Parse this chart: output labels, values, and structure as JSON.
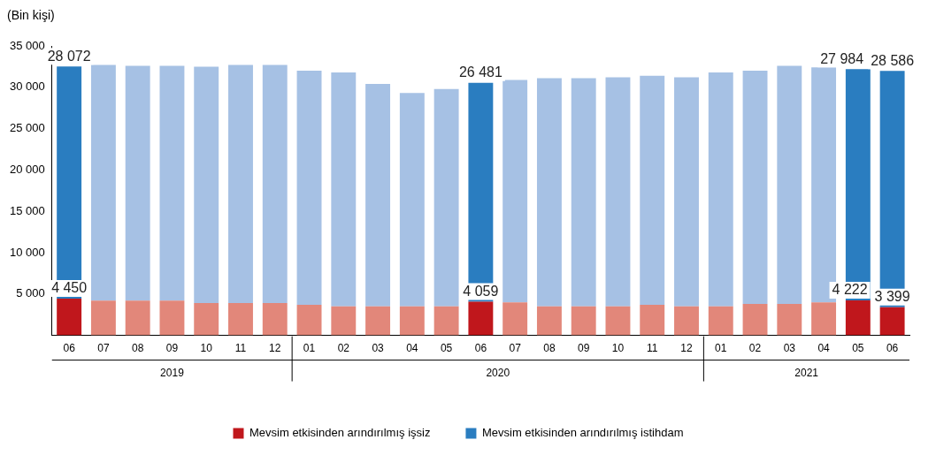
{
  "chart_data": {
    "type": "bar",
    "stacked": true,
    "ylabel": "(Bin kişi)",
    "categories": [
      "06",
      "07",
      "08",
      "09",
      "10",
      "11",
      "12",
      "01",
      "02",
      "03",
      "04",
      "05",
      "06",
      "07",
      "08",
      "09",
      "10",
      "11",
      "12",
      "01",
      "02",
      "03",
      "04",
      "05",
      "06"
    ],
    "annotations": [
      "2019",
      "2020",
      "2021"
    ],
    "series": [
      {
        "name": "Mevsim etkisinden arındırılmış işsiz",
        "color": "#c0171c",
        "colors": [
          "#c0171c",
          "#e2877a",
          "#e2877a",
          "#e2877a",
          "#e2877a",
          "#e2877a",
          "#e2877a",
          "#e2877a",
          "#e2877a",
          "#e2877a",
          "#e2877a",
          "#e2877a",
          "#c0171c",
          "#e2877a",
          "#e2877a",
          "#e2877a",
          "#e2877a",
          "#e2877a",
          "#e2877a",
          "#e2877a",
          "#e2877a",
          "#e2877a",
          "#e2877a",
          "#c0171c",
          "#c0171c"
        ],
        "values": [
          4450,
          4200,
          4200,
          4200,
          3900,
          3900,
          3900,
          3700,
          3500,
          3500,
          3500,
          3500,
          4059,
          4000,
          3500,
          3500,
          3500,
          3700,
          3500,
          3500,
          3800,
          3800,
          4000,
          4222,
          3399
        ],
        "value_labels": [
          "4 450",
          null,
          null,
          null,
          null,
          null,
          null,
          null,
          null,
          null,
          null,
          null,
          "4 059",
          null,
          null,
          null,
          null,
          null,
          null,
          null,
          null,
          null,
          null,
          "4 222",
          "3 399"
        ]
      },
      {
        "name": "Mevsim etkisinden arındırılmış istihdam",
        "color": "#2a7dc0",
        "colors": [
          "#2a7dc0",
          "#a6c1e4",
          "#a6c1e4",
          "#a6c1e4",
          "#a6c1e4",
          "#a6c1e4",
          "#a6c1e4",
          "#a6c1e4",
          "#a6c1e4",
          "#a6c1e4",
          "#a6c1e4",
          "#a6c1e4",
          "#2a7dc0",
          "#a6c1e4",
          "#a6c1e4",
          "#a6c1e4",
          "#a6c1e4",
          "#a6c1e4",
          "#a6c1e4",
          "#a6c1e4",
          "#a6c1e4",
          "#a6c1e4",
          "#a6c1e4",
          "#2a7dc0",
          "#2a7dc0"
        ],
        "values": [
          28072,
          28500,
          28400,
          28400,
          28600,
          28800,
          28800,
          28300,
          28300,
          26900,
          25800,
          26300,
          26481,
          26900,
          27600,
          27600,
          27700,
          27700,
          27700,
          28300,
          28200,
          28800,
          28400,
          27984,
          28586
        ],
        "value_labels": [
          "28 072",
          null,
          null,
          null,
          null,
          null,
          null,
          null,
          null,
          null,
          null,
          null,
          "26 481",
          null,
          null,
          null,
          null,
          null,
          null,
          null,
          null,
          null,
          null,
          "27 984",
          "28 586"
        ]
      }
    ],
    "ylim": [
      0,
      35000
    ],
    "yticks": [
      {
        "value": 5000,
        "label": "5 000"
      },
      {
        "value": 10000,
        "label": "10 000"
      },
      {
        "value": 15000,
        "label": "15 000"
      },
      {
        "value": 20000,
        "label": "20 000"
      },
      {
        "value": 25000,
        "label": "25 000"
      },
      {
        "value": 30000,
        "label": "30 000"
      },
      {
        "value": 35000,
        "label": "35 000"
      }
    ],
    "grid": false,
    "legend": "bottom"
  }
}
